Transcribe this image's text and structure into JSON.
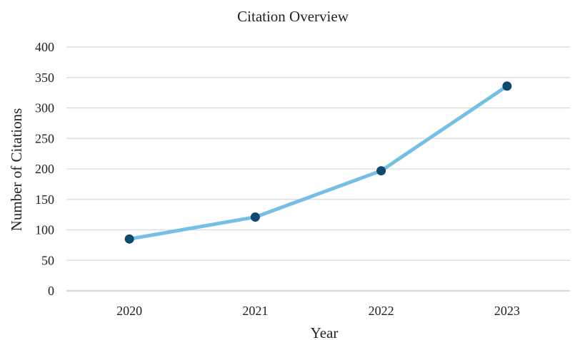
{
  "chart_data": {
    "type": "line",
    "title": "Citation Overview",
    "xlabel": "Year",
    "ylabel": "Number of Citations",
    "categories": [
      "2020",
      "2021",
      "2022",
      "2023"
    ],
    "series": [
      {
        "values": [
          85,
          121,
          197,
          336
        ]
      }
    ],
    "ylim": [
      0,
      400
    ],
    "yticks": [
      0,
      50,
      100,
      150,
      200,
      250,
      300,
      350,
      400
    ],
    "grid": true,
    "legend": "none",
    "colors": {
      "line": "#74bfe3",
      "marker": "#0e4a6e"
    }
  }
}
